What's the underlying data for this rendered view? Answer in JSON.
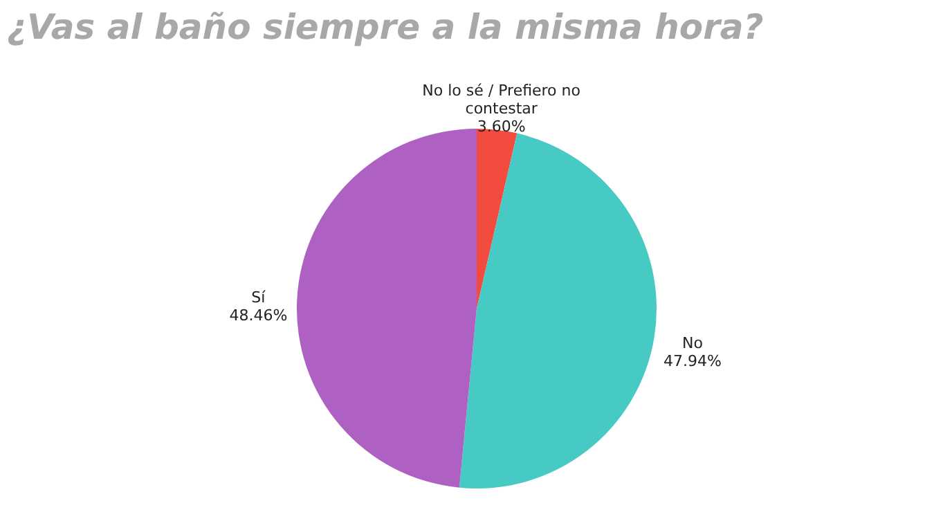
{
  "chart_data": {
    "type": "pie",
    "title": "¿Vas al baño siempre a la misma hora?",
    "categories": [
      "No lo sé / Prefiero no contestar",
      "No",
      "Sí"
    ],
    "values": [
      3.6,
      47.94,
      48.46
    ],
    "colors": [
      "#f44b3f",
      "#47c9c4",
      "#ae60c3"
    ],
    "value_labels": [
      "3.60%",
      "47.94%",
      "48.46%"
    ],
    "legend": false
  }
}
